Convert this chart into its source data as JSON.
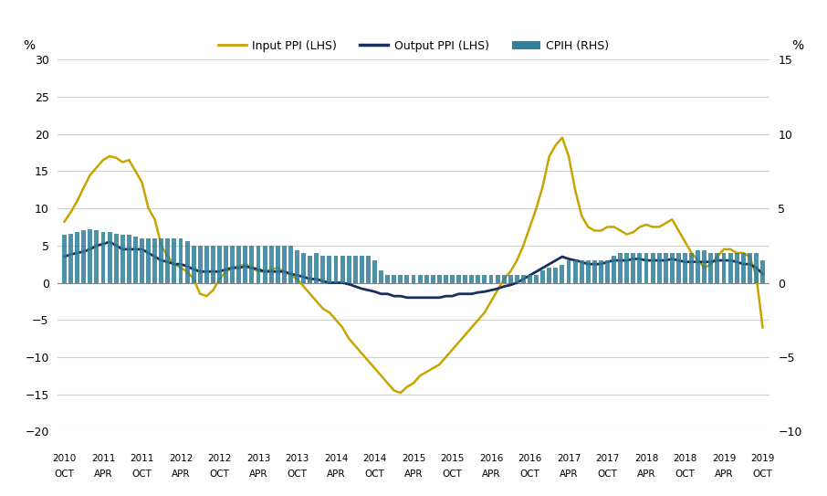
{
  "ylabel_left": "%",
  "ylabel_right": "%",
  "ylim_left": [
    -20,
    30
  ],
  "ylim_right": [
    -10,
    15
  ],
  "yticks_left": [
    -20,
    -15,
    -10,
    -5,
    0,
    5,
    10,
    15,
    20,
    25,
    30
  ],
  "yticks_right": [
    -10,
    -5,
    0,
    5,
    10,
    15
  ],
  "background_color": "#ffffff",
  "grid_color": "#d0d0d0",
  "input_ppi_color": "#c8a400",
  "output_ppi_color": "#1a2e5a",
  "cpih_bar_color": "#2e7f99",
  "legend_labels": [
    "Input PPI (LHS)",
    "Output PPI (LHS)",
    "CPIH (RHS)"
  ],
  "input_ppi": [
    8.2,
    9.5,
    11.0,
    12.8,
    14.5,
    15.5,
    16.5,
    17.0,
    16.8,
    16.2,
    16.5,
    15.0,
    13.5,
    10.0,
    8.5,
    5.0,
    3.5,
    2.5,
    2.0,
    1.5,
    0.5,
    -1.5,
    -1.8,
    -1.0,
    0.5,
    1.5,
    2.0,
    2.2,
    2.5,
    2.0,
    1.5,
    1.5,
    1.8,
    2.0,
    1.5,
    1.0,
    0.5,
    -0.5,
    -1.5,
    -2.5,
    -3.5,
    -4.0,
    -5.0,
    -6.0,
    -7.5,
    -8.5,
    -9.5,
    -10.5,
    -11.5,
    -12.5,
    -13.5,
    -14.5,
    -14.8,
    -14.0,
    -13.5,
    -12.5,
    -12.0,
    -11.5,
    -11.0,
    -10.0,
    -9.0,
    -8.0,
    -7.0,
    -6.0,
    -5.0,
    -4.0,
    -2.5,
    -1.0,
    0.5,
    1.5,
    3.0,
    5.0,
    7.5,
    10.0,
    13.0,
    17.0,
    18.5,
    19.5,
    17.0,
    12.5,
    9.0,
    7.5,
    7.0,
    7.0,
    7.5,
    7.5,
    7.0,
    6.5,
    6.8,
    7.5,
    7.8,
    7.5,
    7.5,
    8.0,
    8.5,
    7.0,
    5.5,
    4.0,
    3.0,
    2.0,
    2.5,
    3.5,
    4.5,
    4.5,
    4.0,
    4.0,
    3.5,
    1.0,
    -6.0
  ],
  "output_ppi": [
    3.5,
    3.8,
    4.0,
    4.2,
    4.5,
    5.0,
    5.2,
    5.5,
    5.0,
    4.5,
    4.5,
    4.5,
    4.5,
    4.0,
    3.5,
    3.0,
    2.8,
    2.5,
    2.5,
    2.2,
    1.8,
    1.5,
    1.5,
    1.5,
    1.5,
    1.8,
    2.0,
    2.0,
    2.2,
    2.0,
    1.8,
    1.5,
    1.5,
    1.5,
    1.5,
    1.2,
    1.0,
    0.8,
    0.5,
    0.5,
    0.2,
    0.0,
    0.0,
    0.0,
    -0.2,
    -0.5,
    -0.8,
    -1.0,
    -1.2,
    -1.5,
    -1.5,
    -1.8,
    -1.8,
    -2.0,
    -2.0,
    -2.0,
    -2.0,
    -2.0,
    -2.0,
    -1.8,
    -1.8,
    -1.5,
    -1.5,
    -1.5,
    -1.3,
    -1.2,
    -1.0,
    -0.8,
    -0.5,
    -0.3,
    0.0,
    0.5,
    1.0,
    1.5,
    2.0,
    2.5,
    3.0,
    3.5,
    3.2,
    3.0,
    2.8,
    2.5,
    2.5,
    2.5,
    2.8,
    3.0,
    3.0,
    3.0,
    3.2,
    3.2,
    3.0,
    3.0,
    3.0,
    3.0,
    3.2,
    3.0,
    2.8,
    2.8,
    2.8,
    2.8,
    2.8,
    3.0,
    3.0,
    3.0,
    2.8,
    2.5,
    2.5,
    2.0,
    1.2
  ],
  "cpih": [
    3.2,
    3.3,
    3.4,
    3.5,
    3.6,
    3.5,
    3.4,
    3.4,
    3.3,
    3.2,
    3.2,
    3.1,
    3.0,
    3.0,
    3.0,
    3.0,
    3.0,
    3.0,
    3.0,
    2.8,
    2.5,
    2.5,
    2.5,
    2.5,
    2.5,
    2.5,
    2.5,
    2.5,
    2.5,
    2.5,
    2.5,
    2.5,
    2.5,
    2.5,
    2.5,
    2.5,
    2.2,
    2.0,
    1.8,
    2.0,
    1.8,
    1.8,
    1.8,
    1.8,
    1.8,
    1.8,
    1.8,
    1.8,
    1.5,
    0.8,
    0.5,
    0.5,
    0.5,
    0.5,
    0.5,
    0.5,
    0.5,
    0.5,
    0.5,
    0.5,
    0.5,
    0.5,
    0.5,
    0.5,
    0.5,
    0.5,
    0.5,
    0.5,
    0.5,
    0.5,
    0.5,
    0.5,
    0.5,
    0.5,
    0.8,
    1.0,
    1.0,
    1.2,
    1.5,
    1.5,
    1.5,
    1.5,
    1.5,
    1.5,
    1.5,
    1.8,
    2.0,
    2.0,
    2.0,
    2.0,
    2.0,
    2.0,
    2.0,
    2.0,
    2.0,
    2.0,
    2.0,
    2.0,
    2.2,
    2.2,
    2.0,
    2.0,
    2.0,
    2.0,
    2.0,
    2.0,
    2.0,
    2.0,
    1.5
  ],
  "xtick_positions": [
    0,
    6,
    12,
    18,
    24,
    30,
    36,
    42,
    48,
    54,
    60,
    66,
    72,
    78,
    84,
    90,
    96,
    102,
    108
  ],
  "xtick_year": [
    "2010",
    "2011",
    "2011",
    "2012",
    "2012",
    "2013",
    "2013",
    "2014",
    "2014",
    "2015",
    "2015",
    "2016",
    "2016",
    "2017",
    "2017",
    "2018",
    "2018",
    "2019",
    "2019"
  ],
  "xtick_month": [
    "OCT",
    "APR",
    "OCT",
    "APR",
    "OCT",
    "APR",
    "OCT",
    "APR",
    "OCT",
    "APR",
    "OCT",
    "APR",
    "OCT",
    "APR",
    "OCT",
    "APR",
    "OCT",
    "APR",
    "OCT"
  ]
}
